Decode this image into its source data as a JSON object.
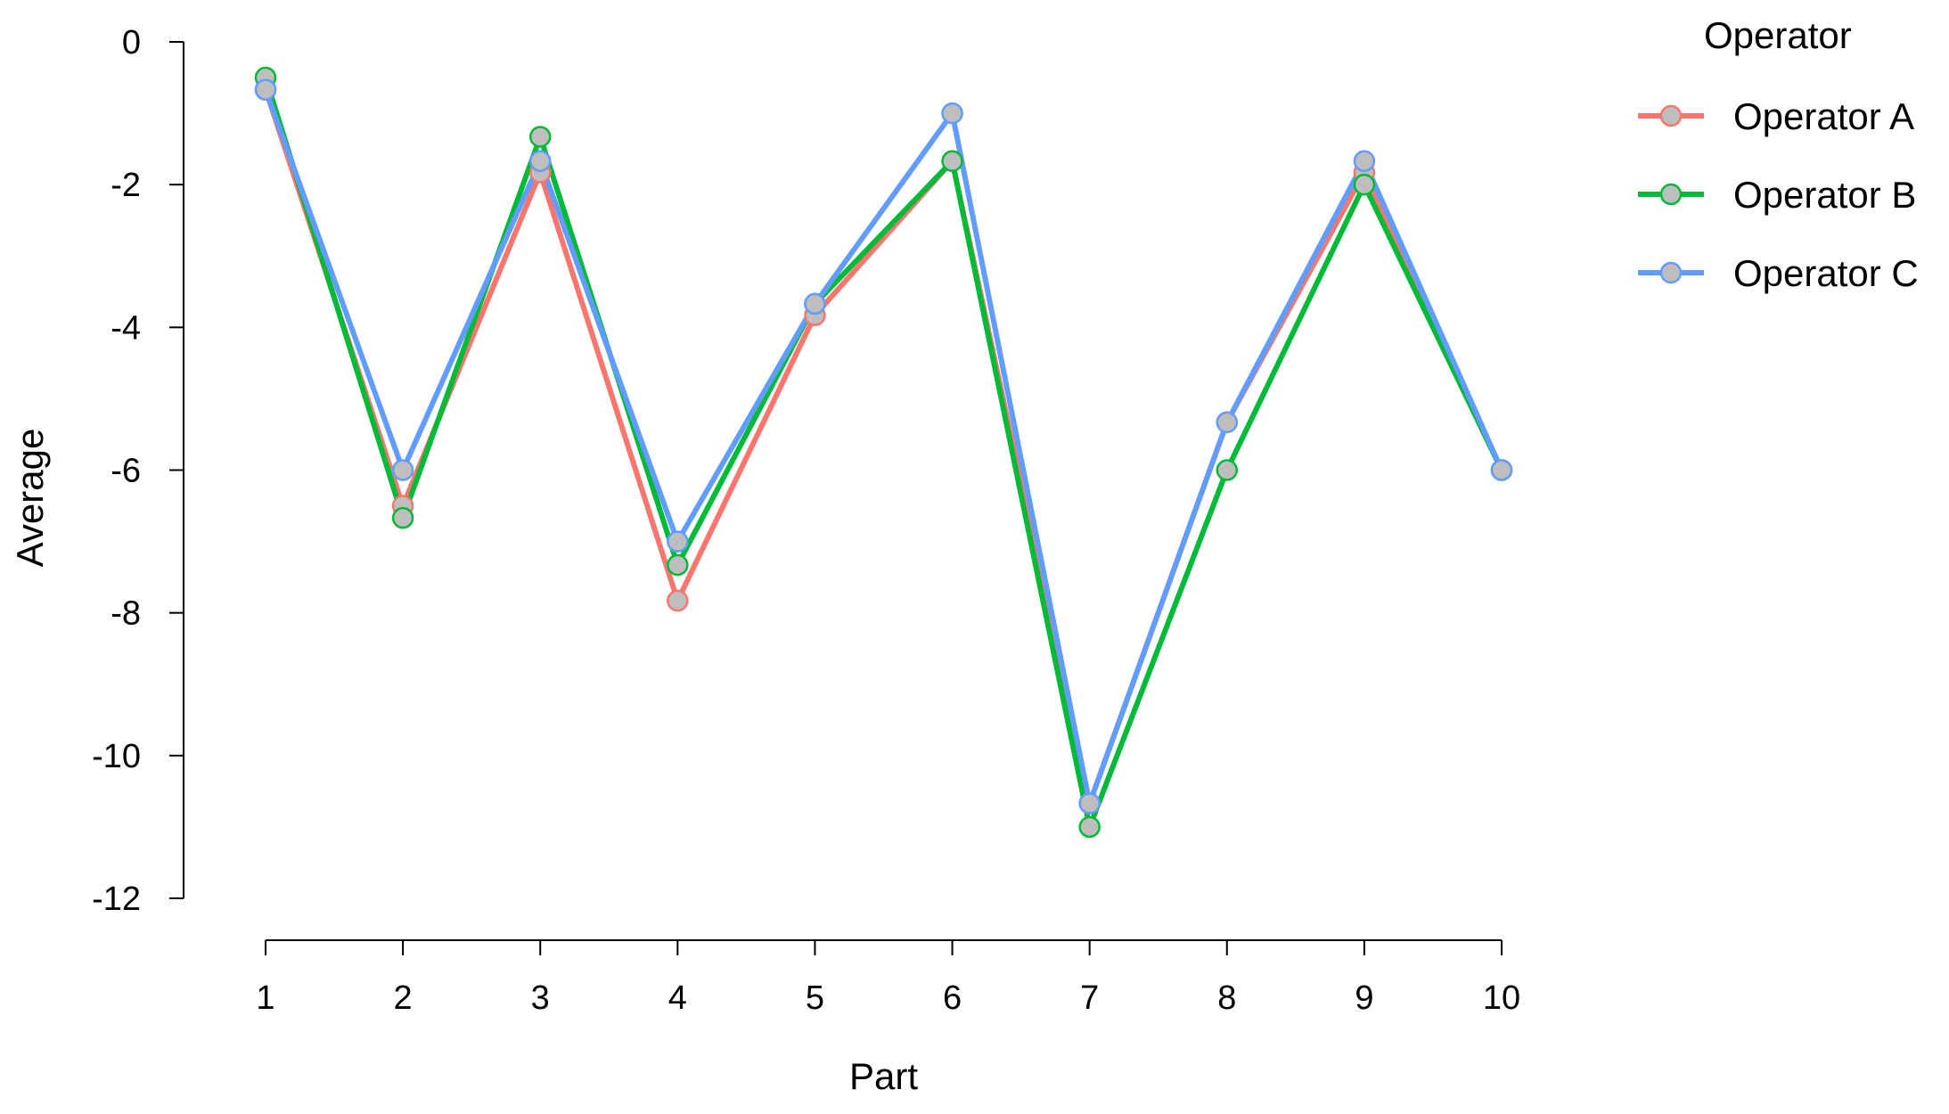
{
  "chart_data": {
    "type": "line",
    "xlabel": "Part",
    "ylabel": "Average",
    "categories": [
      "1",
      "2",
      "3",
      "4",
      "5",
      "6",
      "7",
      "8",
      "9",
      "10"
    ],
    "ylim": [
      -12,
      0
    ],
    "yticks": [
      0,
      -2,
      -4,
      -6,
      -8,
      -10,
      -12
    ],
    "ytick_labels": [
      "0",
      "-2",
      "-4",
      "-6",
      "-8",
      "-10",
      "-12"
    ],
    "grid": false,
    "legend": {
      "title": "Operator",
      "position": "top-right"
    },
    "marker_fill": "#BEBEBE",
    "series": [
      {
        "name": "Operator A",
        "color": "#F8766D",
        "values": [
          -0.67,
          -6.5,
          -1.83,
          -7.83,
          -3.83,
          -1.67,
          -10.67,
          -5.33,
          -1.83,
          -6.0
        ]
      },
      {
        "name": "Operator B",
        "color": "#00BA38",
        "values": [
          -0.5,
          -6.67,
          -1.33,
          -7.33,
          -3.67,
          -1.67,
          -11.0,
          -6.0,
          -2.0,
          -6.0
        ]
      },
      {
        "name": "Operator C",
        "color": "#619CFF",
        "values": [
          -0.67,
          -6.0,
          -1.67,
          -7.0,
          -3.67,
          -1.0,
          -10.67,
          -5.33,
          -1.67,
          -6.0
        ]
      }
    ]
  }
}
